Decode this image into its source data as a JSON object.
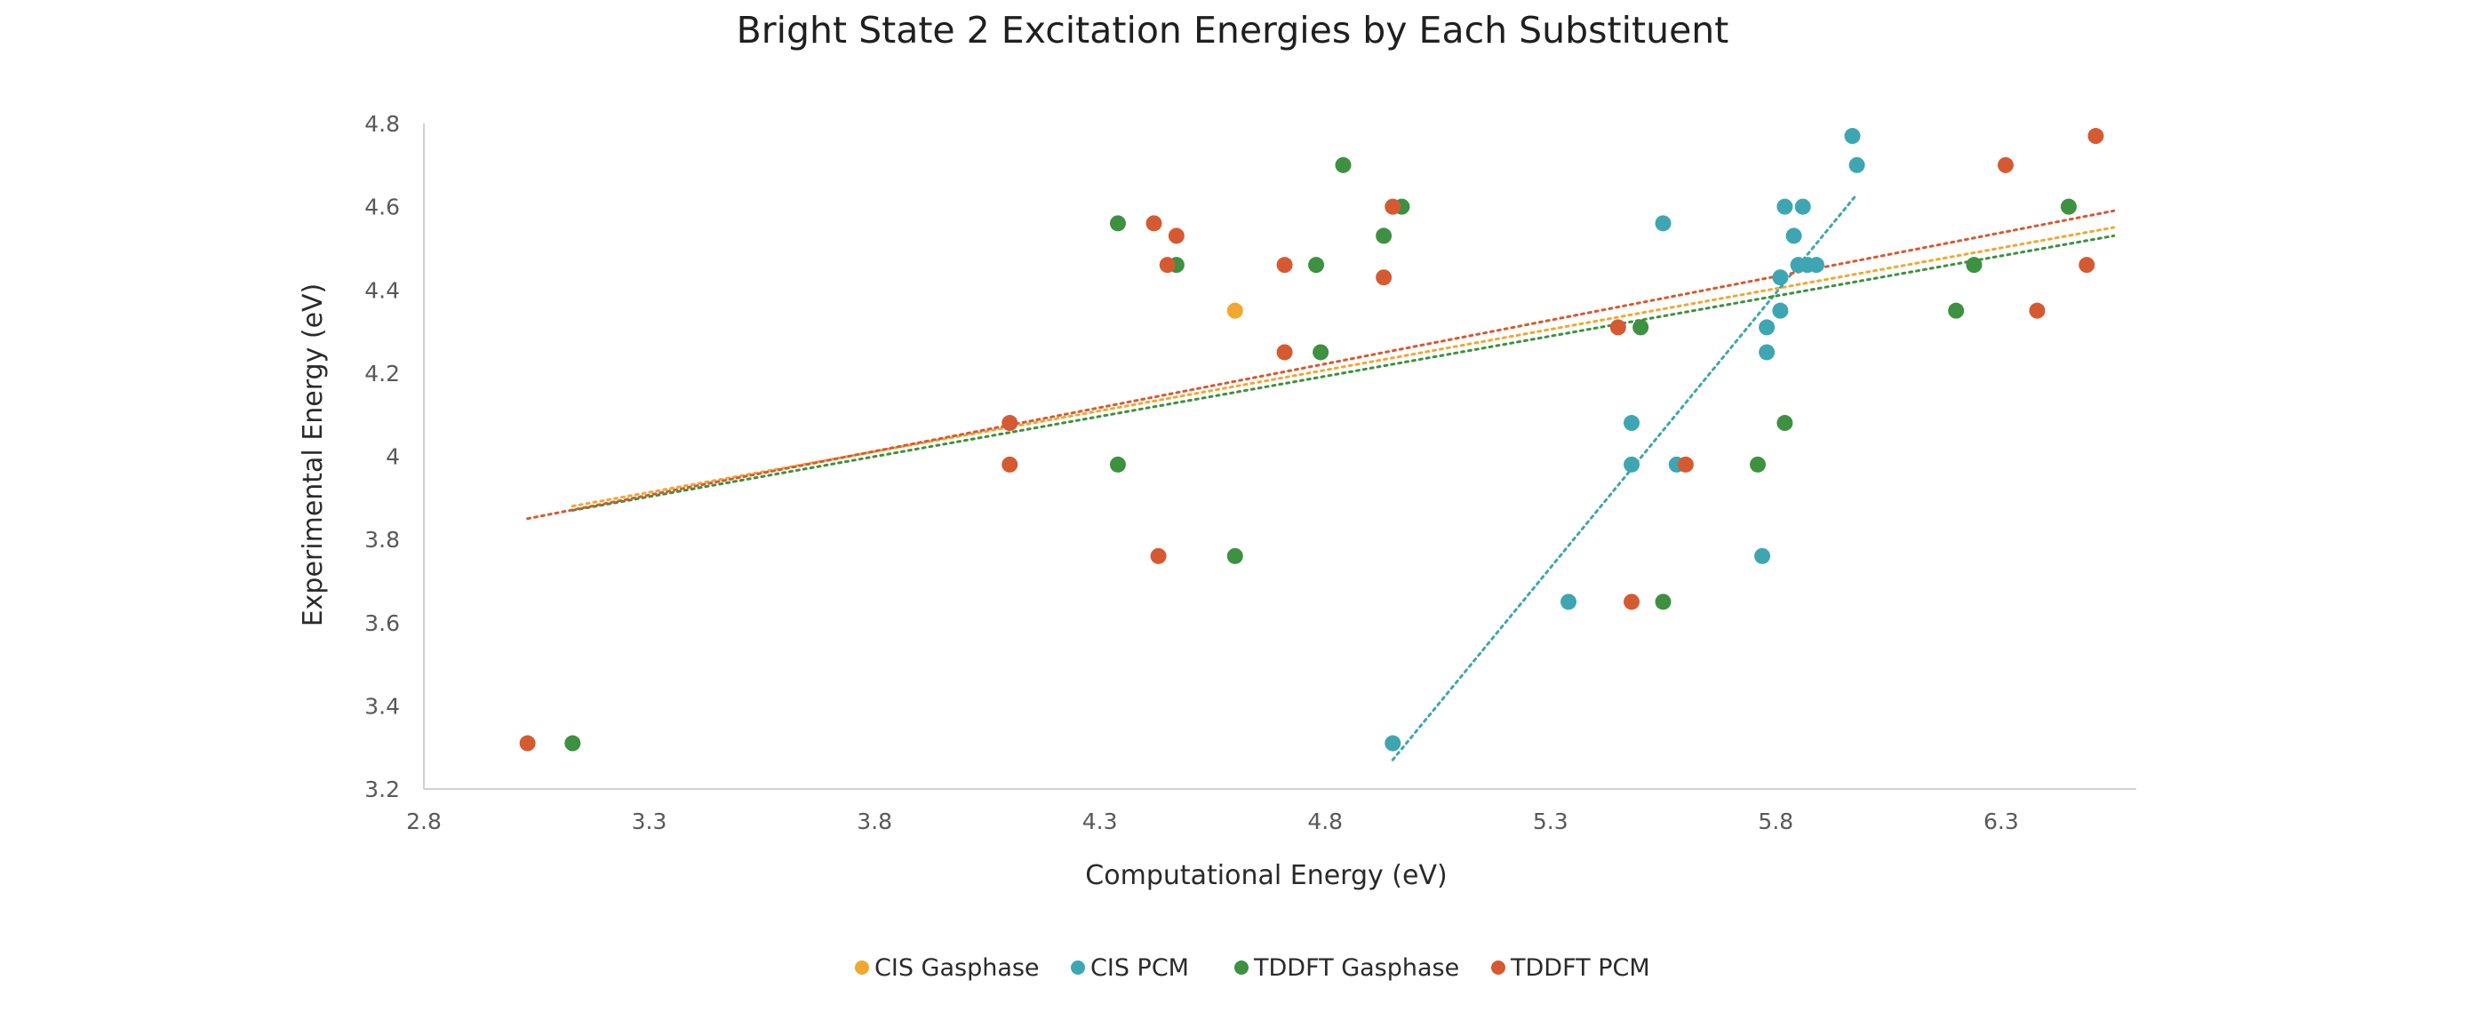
{
  "chart_data": {
    "type": "scatter",
    "title": "Bright State 2 Excitation Energies by Each Substituent",
    "xlabel": "Computational Energy (eV)",
    "ylabel": "Experimental Energy (eV)",
    "xlim": [
      2.8,
      6.6
    ],
    "ylim": [
      3.2,
      4.8
    ],
    "x_ticks": [
      "2.8",
      "3.3",
      "3.8",
      "4.3",
      "4.8",
      "5.3",
      "5.8",
      "6.3"
    ],
    "y_ticks": [
      "3.2",
      "3.4",
      "3.6",
      "3.8",
      "4",
      "4.2",
      "4.4",
      "4.6",
      "4.8"
    ],
    "grid": false,
    "legend_position": "bottom",
    "trendline_style": "dotted linear",
    "series": [
      {
        "name": "CIS Gasphase",
        "color": "#F0A830",
        "points": [
          [
            4.6,
            4.35
          ]
        ],
        "trendline": [
          [
            3.13,
            3.88
          ],
          [
            6.55,
            4.55
          ]
        ]
      },
      {
        "name": "CIS PCM",
        "color": "#3EA6B2",
        "points": [
          [
            4.95,
            3.31
          ],
          [
            5.34,
            3.65
          ],
          [
            5.48,
            3.98
          ],
          [
            5.48,
            4.08
          ],
          [
            5.55,
            4.56
          ],
          [
            5.58,
            3.98
          ],
          [
            5.77,
            3.76
          ],
          [
            5.78,
            4.31
          ],
          [
            5.78,
            4.25
          ],
          [
            5.81,
            4.35
          ],
          [
            5.81,
            4.43
          ],
          [
            5.82,
            4.6
          ],
          [
            5.84,
            4.53
          ],
          [
            5.85,
            4.46
          ],
          [
            5.86,
            4.6
          ],
          [
            5.87,
            4.46
          ],
          [
            5.89,
            4.46
          ],
          [
            5.97,
            4.77
          ],
          [
            5.98,
            4.7
          ]
        ],
        "trendline": [
          [
            4.95,
            3.27
          ],
          [
            5.98,
            4.63
          ]
        ]
      },
      {
        "name": "TDDFT Gasphase",
        "color": "#3D9140",
        "points": [
          [
            3.13,
            3.31
          ],
          [
            4.34,
            4.56
          ],
          [
            4.34,
            3.98
          ],
          [
            4.47,
            4.46
          ],
          [
            4.6,
            3.76
          ],
          [
            4.78,
            4.46
          ],
          [
            4.79,
            4.25
          ],
          [
            4.84,
            4.7
          ],
          [
            4.93,
            4.53
          ],
          [
            4.97,
            4.6
          ],
          [
            5.5,
            4.31
          ],
          [
            5.55,
            3.65
          ],
          [
            5.76,
            3.98
          ],
          [
            5.82,
            4.08
          ],
          [
            6.2,
            4.35
          ],
          [
            6.24,
            4.46
          ],
          [
            6.45,
            4.6
          ]
        ],
        "trendline": [
          [
            3.13,
            3.87
          ],
          [
            6.55,
            4.53
          ]
        ]
      },
      {
        "name": "TDDFT PCM",
        "color": "#D65A31",
        "points": [
          [
            3.03,
            3.31
          ],
          [
            4.1,
            4.08
          ],
          [
            4.1,
            3.98
          ],
          [
            4.42,
            4.56
          ],
          [
            4.43,
            3.76
          ],
          [
            4.45,
            4.46
          ],
          [
            4.47,
            4.53
          ],
          [
            4.71,
            4.46
          ],
          [
            4.71,
            4.25
          ],
          [
            4.93,
            4.43
          ],
          [
            4.95,
            4.6
          ],
          [
            5.45,
            4.31
          ],
          [
            5.48,
            3.65
          ],
          [
            5.6,
            3.98
          ],
          [
            6.31,
            4.7
          ],
          [
            6.38,
            4.35
          ],
          [
            6.49,
            4.46
          ],
          [
            6.51,
            4.77
          ]
        ],
        "trendline": [
          [
            3.03,
            3.85
          ],
          [
            6.55,
            4.59
          ]
        ]
      }
    ]
  }
}
